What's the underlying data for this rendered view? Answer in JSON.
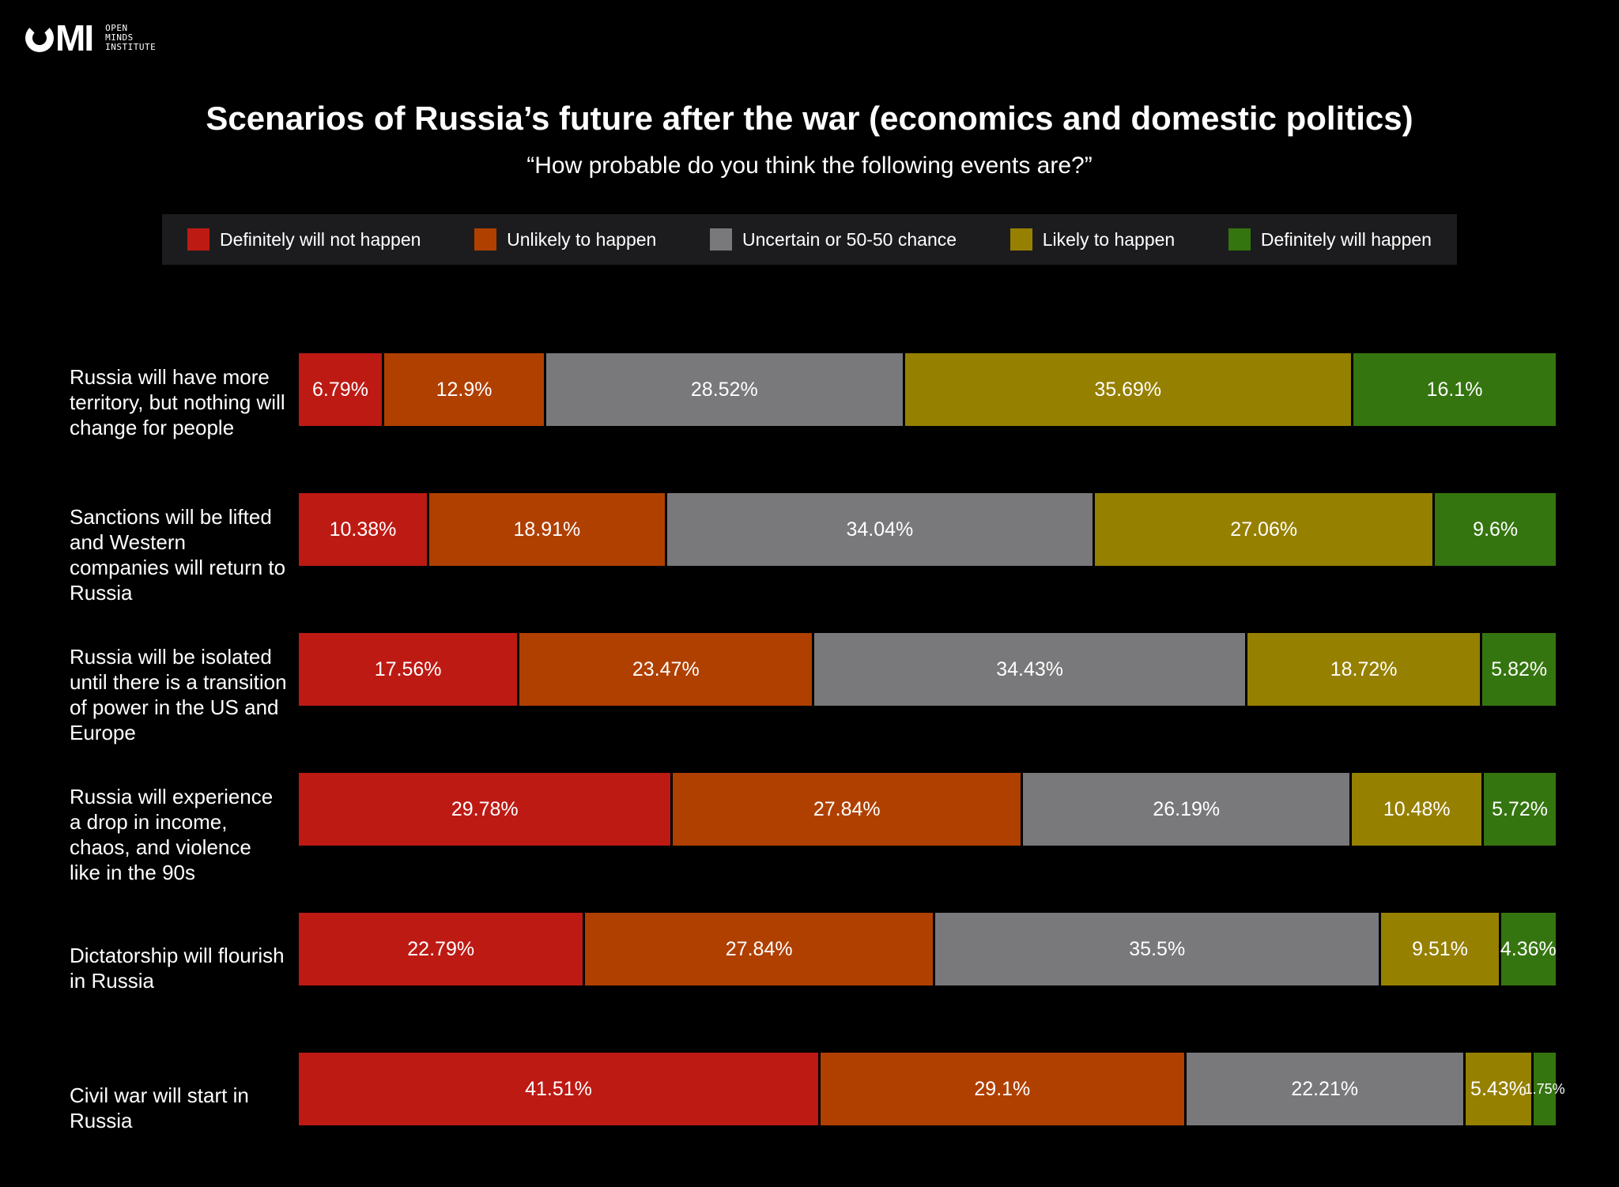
{
  "logo": {
    "mark_letters": "MI",
    "sub_text": "OPEN\nMINDS\nINSTITUTE"
  },
  "title": "Scenarios of Russia’s future after the war (economics and domestic politics)",
  "subtitle": "“How probable do you think the following events are?”",
  "legend": [
    {
      "label": "Definitely will not happen",
      "color": "#be1a14"
    },
    {
      "label": "Unlikely to happen",
      "color": "#b04000"
    },
    {
      "label": "Uncertain or 50-50 chance",
      "color": "#79787a"
    },
    {
      "label": "Likely to happen",
      "color": "#968000"
    },
    {
      "label": "Definitely will happen",
      "color": "#357510"
    }
  ],
  "chart_data": {
    "type": "bar",
    "orientation": "horizontal",
    "stacked": true,
    "unit": "%",
    "categories": [
      "Russia will have more territory, but nothing will change for people",
      "Sanctions will be lifted and Western companies will return to Russia",
      "Russia will be isolated until there is a transition of power in the US and Europe",
      "Russia will experience a drop in income, chaos, and violence like in the 90s",
      "Dictatorship will flourish in Russia",
      "Civil war will start in Russia"
    ],
    "series": [
      {
        "name": "Definitely will not happen",
        "values": [
          6.79,
          10.38,
          17.56,
          29.78,
          22.79,
          41.51
        ],
        "labels": [
          "6.79%",
          "10.38%",
          "17.56%",
          "29.78%",
          "22.79%",
          "41.51%"
        ]
      },
      {
        "name": "Unlikely to happen",
        "values": [
          12.9,
          18.91,
          23.47,
          27.84,
          27.84,
          29.1
        ],
        "labels": [
          "12.9%",
          "18.91%",
          "23.47%",
          "27.84%",
          "27.84%",
          "29.1%"
        ]
      },
      {
        "name": "Uncertain or 50-50 chance",
        "values": [
          28.52,
          34.04,
          34.43,
          26.19,
          35.5,
          22.21
        ],
        "labels": [
          "28.52%",
          "34.04%",
          "34.43%",
          "26.19%",
          "35.5%",
          "22.21%"
        ]
      },
      {
        "name": "Likely to happen",
        "values": [
          35.69,
          27.06,
          18.72,
          10.48,
          9.51,
          5.43
        ],
        "labels": [
          "35.69%",
          "27.06%",
          "18.72%",
          "10.48%",
          "9.51%",
          "5.43%"
        ]
      },
      {
        "name": "Definitely will happen",
        "values": [
          16.1,
          9.6,
          5.82,
          5.72,
          4.36,
          1.75
        ],
        "labels": [
          "16.1%",
          "9.6%",
          "5.82%",
          "5.72%",
          "4.36%",
          "1.75%"
        ]
      }
    ],
    "title": "Scenarios of Russia’s future after the war (economics and domestic politics)",
    "xlabel": "",
    "ylabel": "",
    "legend_position": "top"
  }
}
